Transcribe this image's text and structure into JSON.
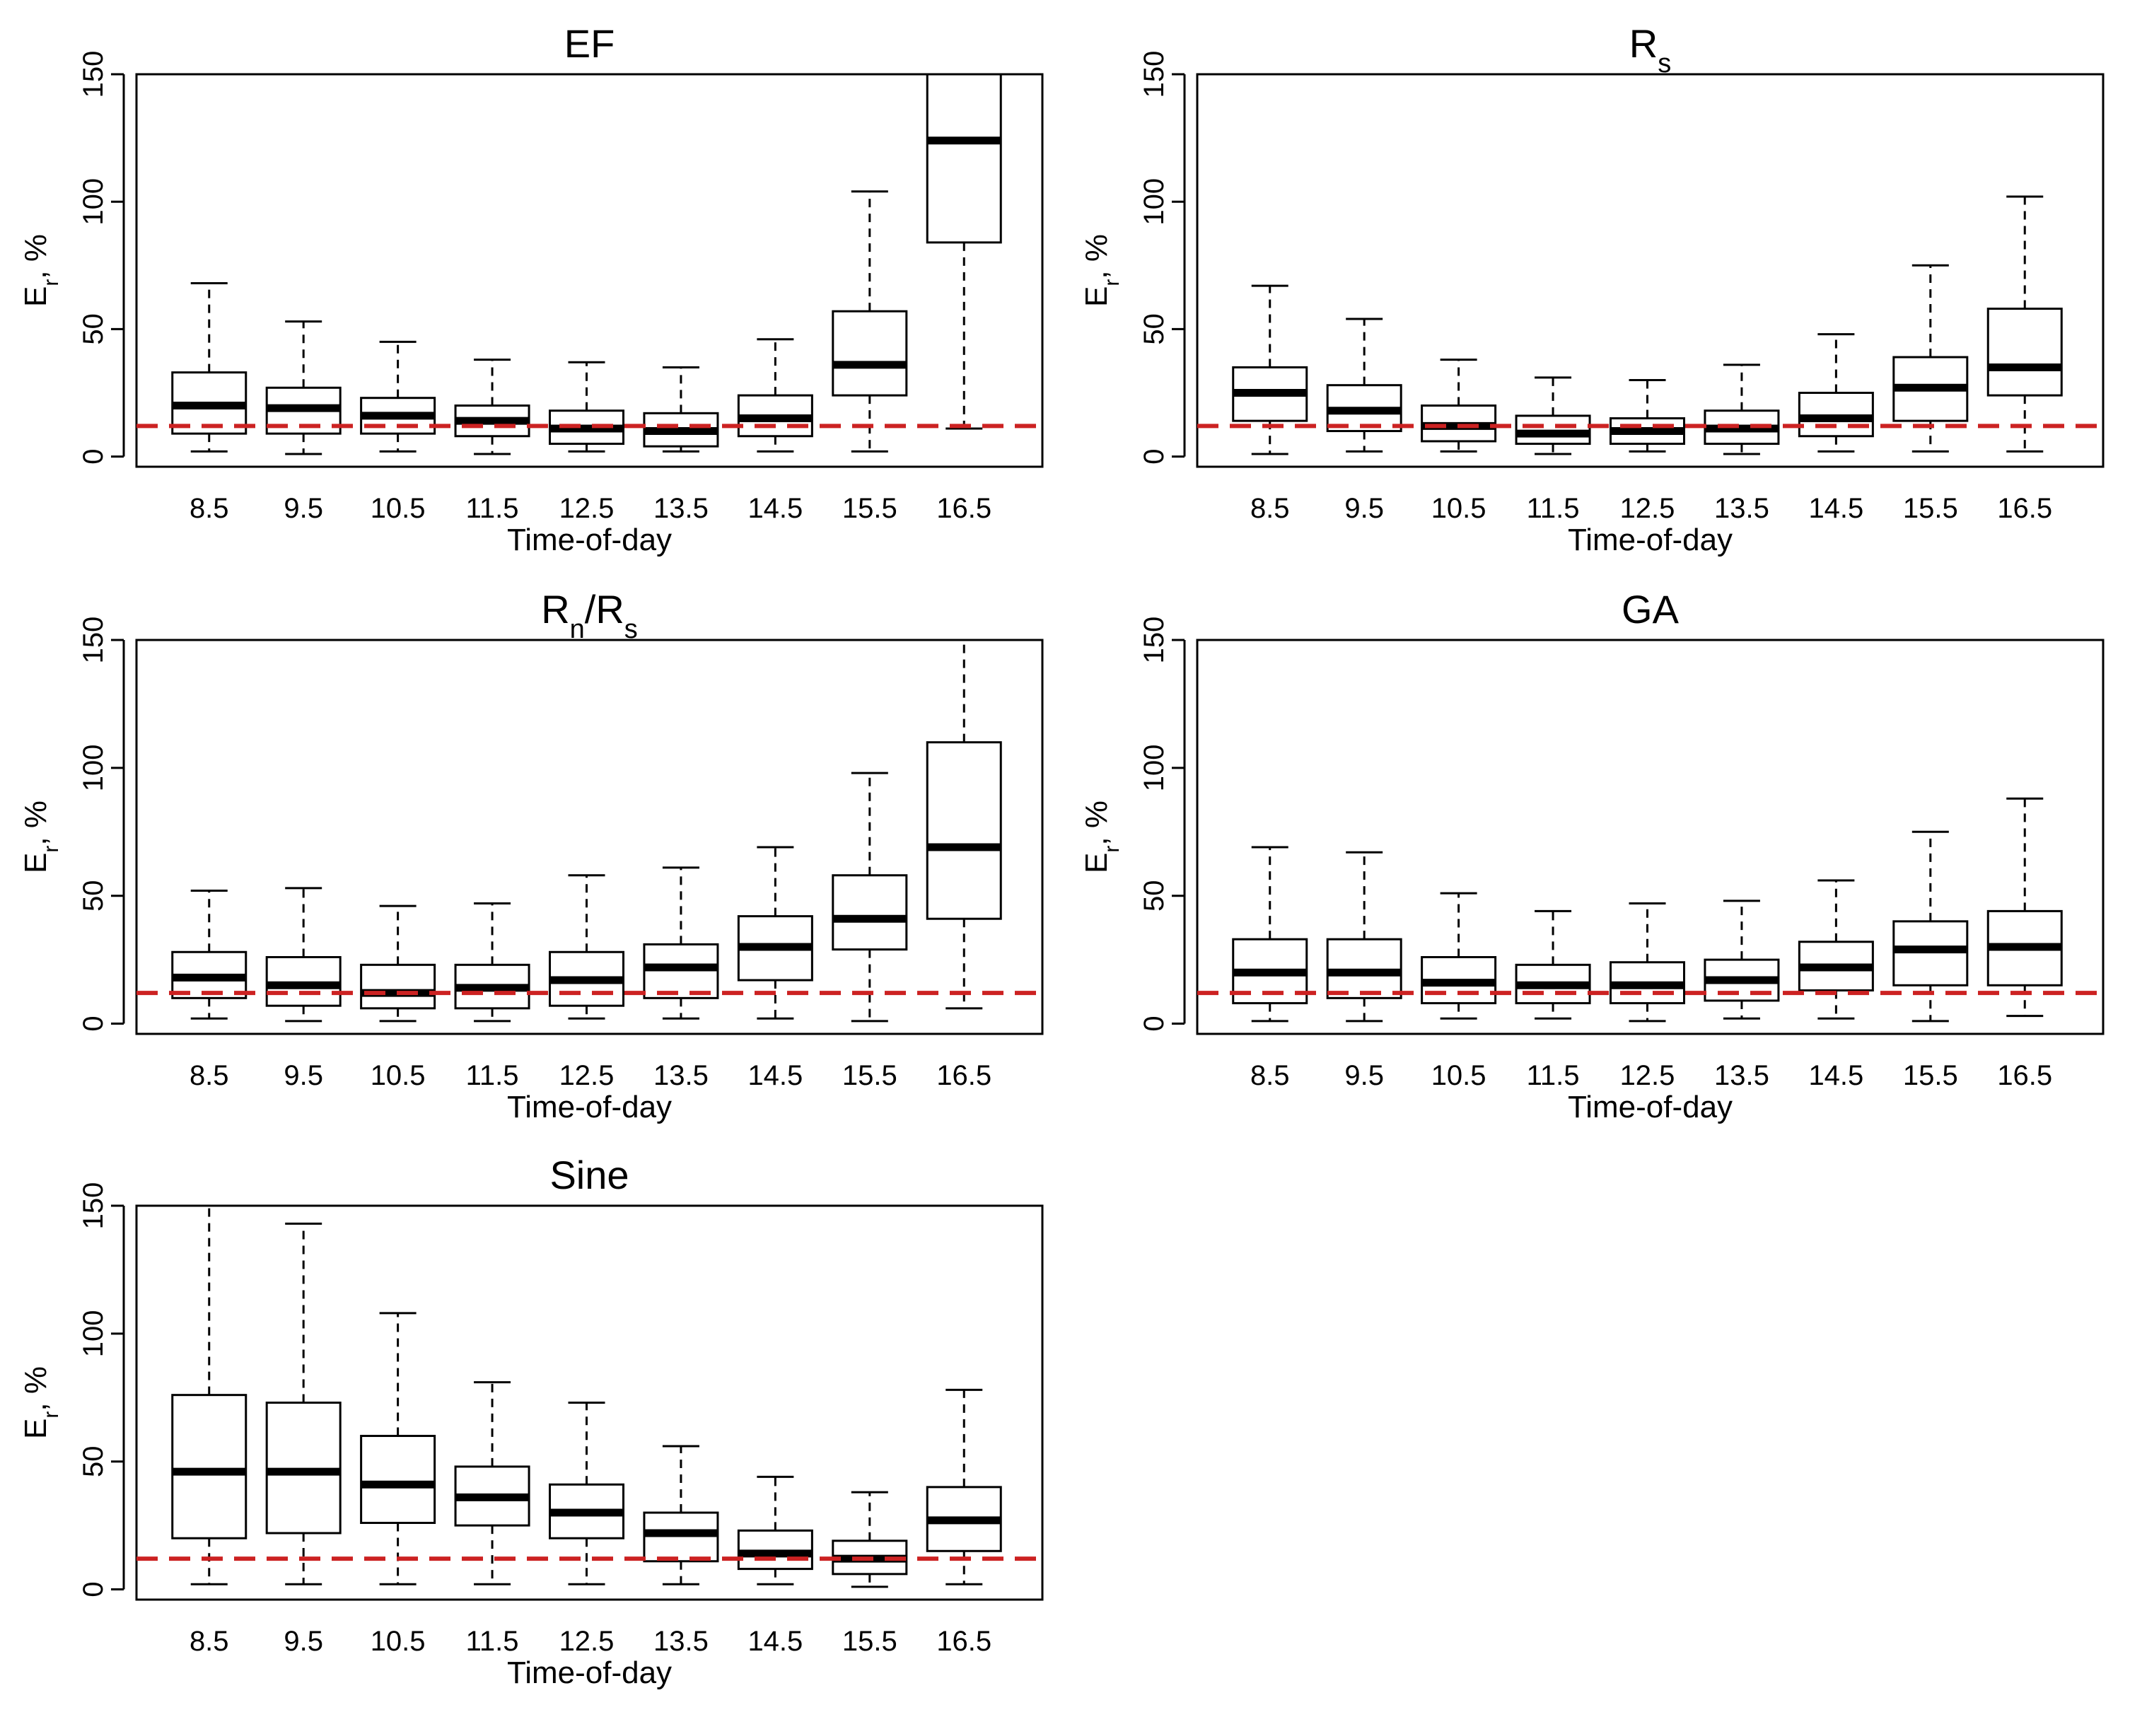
{
  "figure": {
    "ref_line": 12,
    "ref_line_color": "#cc2222",
    "box_color": "#000000",
    "median_color": "#000000"
  },
  "chart_data": [
    {
      "type": "boxplot",
      "title": "EF",
      "title_main": "EF",
      "title_sub": "",
      "title_tail": "",
      "xlabel": "Time-of-day",
      "ylabel": "E",
      "ylabel_sub": "r",
      "ylabel_tail": ", %",
      "ylim": [
        0,
        150
      ],
      "yticks": [
        "0",
        "50",
        "100",
        "150"
      ],
      "categories": [
        "8.5",
        "9.5",
        "10.5",
        "11.5",
        "12.5",
        "13.5",
        "14.5",
        "15.5",
        "16.5"
      ],
      "boxes": [
        {
          "min": 2,
          "q1": 9,
          "median": 20,
          "q3": 33,
          "max": 68
        },
        {
          "min": 1,
          "q1": 9,
          "median": 19,
          "q3": 27,
          "max": 53
        },
        {
          "min": 2,
          "q1": 9,
          "median": 16,
          "q3": 23,
          "max": 45
        },
        {
          "min": 1,
          "q1": 8,
          "median": 14,
          "q3": 20,
          "max": 38
        },
        {
          "min": 2,
          "q1": 5,
          "median": 11,
          "q3": 18,
          "max": 37
        },
        {
          "min": 2,
          "q1": 4,
          "median": 10,
          "q3": 17,
          "max": 35
        },
        {
          "min": 2,
          "q1": 8,
          "median": 15,
          "q3": 24,
          "max": 46
        },
        {
          "min": 2,
          "q1": 24,
          "median": 36,
          "q3": 57,
          "max": 104
        },
        {
          "min": 11,
          "q1": 84,
          "median": 124,
          "q3": 150,
          "max": 150
        }
      ]
    },
    {
      "type": "boxplot",
      "title": "Rs",
      "title_main": "R",
      "title_sub": "s",
      "title_tail": "",
      "xlabel": "Time-of-day",
      "ylabel": "E",
      "ylabel_sub": "r",
      "ylabel_tail": ", %",
      "ylim": [
        0,
        150
      ],
      "yticks": [
        "0",
        "50",
        "100",
        "150"
      ],
      "categories": [
        "8.5",
        "9.5",
        "10.5",
        "11.5",
        "12.5",
        "13.5",
        "14.5",
        "15.5",
        "16.5"
      ],
      "boxes": [
        {
          "min": 1,
          "q1": 14,
          "median": 25,
          "q3": 35,
          "max": 67
        },
        {
          "min": 2,
          "q1": 10,
          "median": 18,
          "q3": 28,
          "max": 54
        },
        {
          "min": 2,
          "q1": 6,
          "median": 12,
          "q3": 20,
          "max": 38
        },
        {
          "min": 1,
          "q1": 5,
          "median": 9,
          "q3": 16,
          "max": 31
        },
        {
          "min": 2,
          "q1": 5,
          "median": 10,
          "q3": 15,
          "max": 30
        },
        {
          "min": 1,
          "q1": 5,
          "median": 11,
          "q3": 18,
          "max": 36
        },
        {
          "min": 2,
          "q1": 8,
          "median": 15,
          "q3": 25,
          "max": 48
        },
        {
          "min": 2,
          "q1": 14,
          "median": 27,
          "q3": 39,
          "max": 75
        },
        {
          "min": 2,
          "q1": 24,
          "median": 35,
          "q3": 58,
          "max": 102
        }
      ]
    },
    {
      "type": "boxplot",
      "title": "Rn/Rs",
      "title_main": "R",
      "title_sub": "n",
      "title_tail": "/R",
      "title_sub2": "s",
      "xlabel": "Time-of-day",
      "ylabel": "E",
      "ylabel_sub": "r",
      "ylabel_tail": ", %",
      "ylim": [
        0,
        150
      ],
      "yticks": [
        "0",
        "50",
        "100",
        "150"
      ],
      "categories": [
        "8.5",
        "9.5",
        "10.5",
        "11.5",
        "12.5",
        "13.5",
        "14.5",
        "15.5",
        "16.5"
      ],
      "boxes": [
        {
          "min": 2,
          "q1": 10,
          "median": 18,
          "q3": 28,
          "max": 52
        },
        {
          "min": 1,
          "q1": 7,
          "median": 15,
          "q3": 26,
          "max": 53
        },
        {
          "min": 1,
          "q1": 6,
          "median": 12,
          "q3": 23,
          "max": 46
        },
        {
          "min": 1,
          "q1": 6,
          "median": 14,
          "q3": 23,
          "max": 47
        },
        {
          "min": 2,
          "q1": 7,
          "median": 17,
          "q3": 28,
          "max": 58
        },
        {
          "min": 2,
          "q1": 10,
          "median": 22,
          "q3": 31,
          "max": 61
        },
        {
          "min": 2,
          "q1": 17,
          "median": 30,
          "q3": 42,
          "max": 69
        },
        {
          "min": 1,
          "q1": 29,
          "median": 41,
          "q3": 58,
          "max": 98
        },
        {
          "min": 6,
          "q1": 41,
          "median": 69,
          "q3": 110,
          "max": 150
        }
      ]
    },
    {
      "type": "boxplot",
      "title": "GA",
      "title_main": "GA",
      "title_sub": "",
      "title_tail": "",
      "xlabel": "Time-of-day",
      "ylabel": "E",
      "ylabel_sub": "r",
      "ylabel_tail": ", %",
      "ylim": [
        0,
        150
      ],
      "yticks": [
        "0",
        "50",
        "100",
        "150"
      ],
      "categories": [
        "8.5",
        "9.5",
        "10.5",
        "11.5",
        "12.5",
        "13.5",
        "14.5",
        "15.5",
        "16.5"
      ],
      "boxes": [
        {
          "min": 1,
          "q1": 8,
          "median": 20,
          "q3": 33,
          "max": 69
        },
        {
          "min": 1,
          "q1": 10,
          "median": 20,
          "q3": 33,
          "max": 67
        },
        {
          "min": 2,
          "q1": 8,
          "median": 16,
          "q3": 26,
          "max": 51
        },
        {
          "min": 2,
          "q1": 8,
          "median": 15,
          "q3": 23,
          "max": 44
        },
        {
          "min": 1,
          "q1": 8,
          "median": 15,
          "q3": 24,
          "max": 47
        },
        {
          "min": 2,
          "q1": 9,
          "median": 17,
          "q3": 25,
          "max": 48
        },
        {
          "min": 2,
          "q1": 13,
          "median": 22,
          "q3": 32,
          "max": 56
        },
        {
          "min": 1,
          "q1": 15,
          "median": 29,
          "q3": 40,
          "max": 75
        },
        {
          "min": 3,
          "q1": 15,
          "median": 30,
          "q3": 44,
          "max": 88
        }
      ]
    },
    {
      "type": "boxplot",
      "title": "Sine",
      "title_main": "Sine",
      "title_sub": "",
      "title_tail": "",
      "xlabel": "Time-of-day",
      "ylabel": "E",
      "ylabel_sub": "r",
      "ylabel_tail": ", %",
      "ylim": [
        0,
        150
      ],
      "yticks": [
        "0",
        "50",
        "100",
        "150"
      ],
      "categories": [
        "8.5",
        "9.5",
        "10.5",
        "11.5",
        "12.5",
        "13.5",
        "14.5",
        "15.5",
        "16.5"
      ],
      "boxes": [
        {
          "min": 2,
          "q1": 20,
          "median": 46,
          "q3": 76,
          "max": 150
        },
        {
          "min": 2,
          "q1": 22,
          "median": 46,
          "q3": 73,
          "max": 143
        },
        {
          "min": 2,
          "q1": 26,
          "median": 41,
          "q3": 60,
          "max": 108
        },
        {
          "min": 2,
          "q1": 25,
          "median": 36,
          "q3": 48,
          "max": 81
        },
        {
          "min": 2,
          "q1": 20,
          "median": 30,
          "q3": 41,
          "max": 73
        },
        {
          "min": 2,
          "q1": 11,
          "median": 22,
          "q3": 30,
          "max": 56
        },
        {
          "min": 2,
          "q1": 8,
          "median": 14,
          "q3": 23,
          "max": 44
        },
        {
          "min": 1,
          "q1": 6,
          "median": 12,
          "q3": 19,
          "max": 38
        },
        {
          "min": 2,
          "q1": 15,
          "median": 27,
          "q3": 40,
          "max": 78
        }
      ]
    }
  ]
}
